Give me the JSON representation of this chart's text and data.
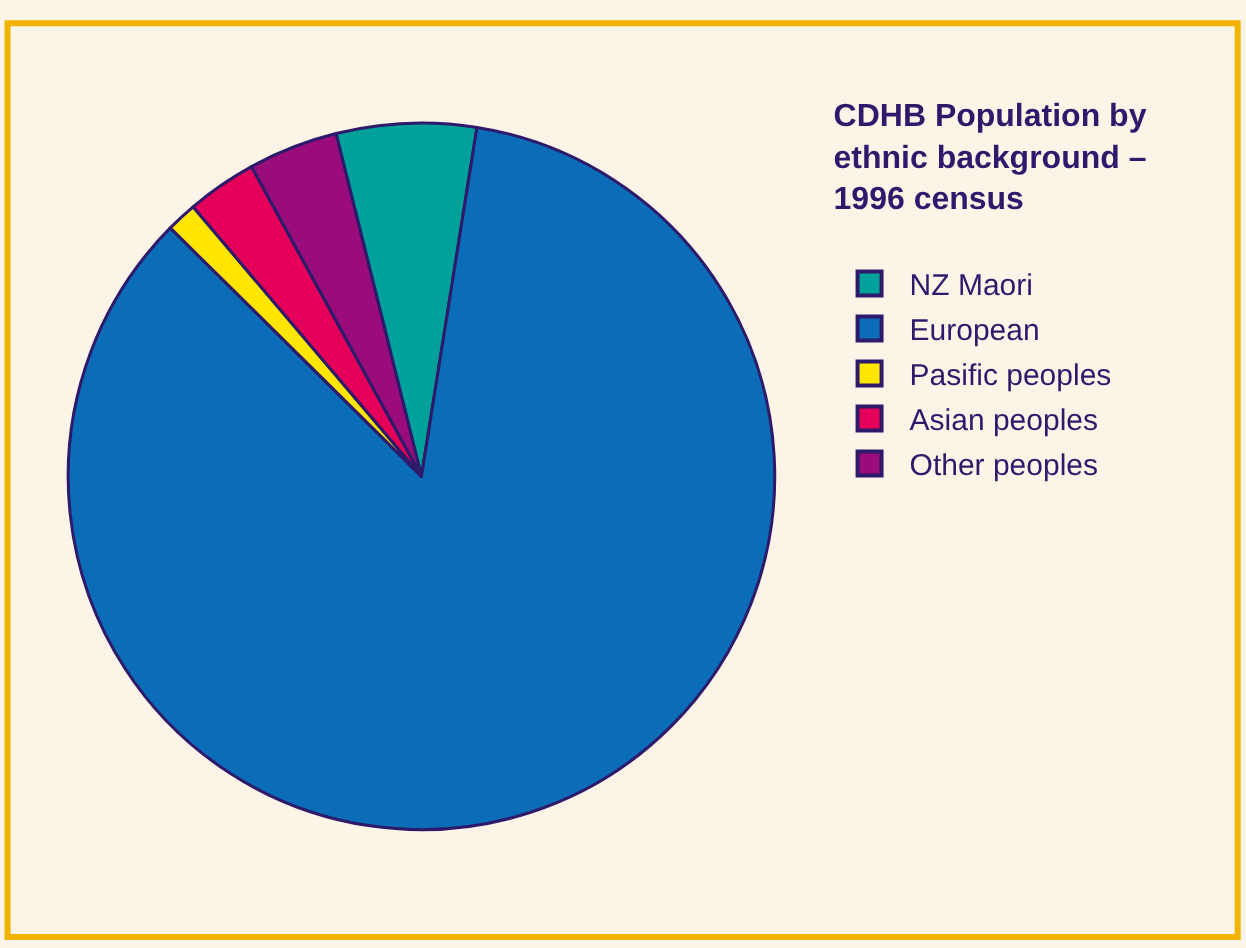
{
  "chart_data": {
    "type": "pie",
    "legend_title": "CDHB Population by ethnic background – 1996 census",
    "categories": [
      "NZ Maori",
      "European",
      "Pasific peoples",
      "Asian peoples",
      "Other peoples"
    ],
    "values": [
      6.4,
      84.9,
      1.4,
      3.2,
      4.1
    ],
    "colors": [
      "#00a19a",
      "#0b6db7",
      "#ffe600",
      "#e5005a",
      "#990c7a"
    ],
    "legend": "top right"
  }
}
